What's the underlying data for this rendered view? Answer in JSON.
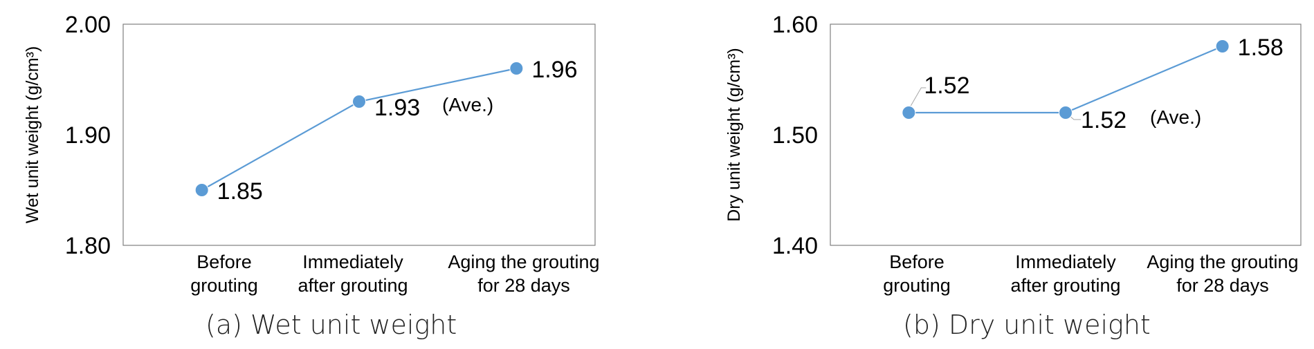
{
  "chart_data": [
    {
      "type": "line",
      "categories": [
        "Before grouting",
        "Immediately after grouting",
        "Aging the grouting for 28 days"
      ],
      "category_lines": [
        [
          "Before",
          "grouting"
        ],
        [
          "Immediately",
          "after grouting"
        ],
        [
          "Aging the grouting",
          "for 28 days"
        ]
      ],
      "values": [
        1.85,
        1.93,
        1.96
      ],
      "data_labels": [
        "1.85",
        "1.93",
        "1.96"
      ],
      "annotations": [
        "",
        "(Ave.)",
        ""
      ],
      "ylabel": "Wet unit weight (g/cm³)",
      "ylim": [
        1.8,
        2.0
      ],
      "yticks": [
        "1.80",
        "1.90",
        "2.00"
      ],
      "caption": "(a) Wet unit weight",
      "grid": false,
      "color": "#5b9bd5"
    },
    {
      "type": "line",
      "categories": [
        "Before grouting",
        "Immediately after grouting",
        "Aging the grouting for 28 days"
      ],
      "category_lines": [
        [
          "Before",
          "grouting"
        ],
        [
          "Immediately",
          "after grouting"
        ],
        [
          "Aging the grouting",
          "for 28 days"
        ]
      ],
      "values": [
        1.52,
        1.52,
        1.58
      ],
      "data_labels": [
        "1.52",
        "1.52",
        "1.58"
      ],
      "annotations": [
        "",
        "(Ave.)",
        ""
      ],
      "ylabel": "Dry unit weight (g/cm³)",
      "ylim": [
        1.4,
        1.6
      ],
      "yticks": [
        "1.40",
        "1.50",
        "1.60"
      ],
      "caption": "(b) Dry unit weight",
      "grid": false,
      "color": "#5b9bd5"
    }
  ]
}
